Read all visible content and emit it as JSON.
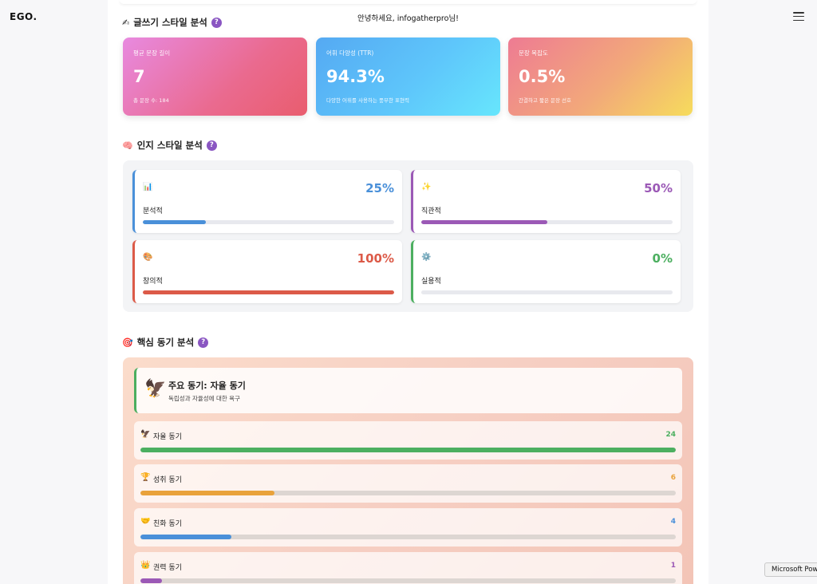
{
  "app": {
    "logo": "EGO."
  },
  "header": {
    "greeting": "안녕하세요, infogatherpro님!"
  },
  "writing": {
    "title": "글쓰기 스타일 분석",
    "icon": "✍",
    "cards": [
      {
        "label": "평균 문장 길이",
        "value": "7",
        "sub": "총 문장 수: 184"
      },
      {
        "label": "어휘 다양성 (TTR)",
        "value": "94.3%",
        "sub": "다양한 어휘를 사용하는 풍부한 표현력"
      },
      {
        "label": "문장 복잡도",
        "value": "0.5%",
        "sub": "간결하고 짧은 문장 선호"
      }
    ]
  },
  "cognitive": {
    "title": "인지 스타일 분석",
    "icon": "🧠",
    "items": [
      {
        "icon": "📊",
        "name": "분석적",
        "percent": "25%",
        "level": 0.25,
        "color": "#4a90d9"
      },
      {
        "icon": "✨",
        "name": "직관적",
        "percent": "50%",
        "level": 0.5,
        "color": "#9b59b6"
      },
      {
        "icon": "🎨",
        "name": "창의적",
        "percent": "100%",
        "level": 1.0,
        "color": "#dc5a48"
      },
      {
        "icon": "⚙️",
        "name": "실용적",
        "percent": "0%",
        "level": 0.0,
        "color": "#4caf60"
      }
    ]
  },
  "motivation": {
    "title": "핵심 동기 분석",
    "icon": "🎯",
    "primary": {
      "icon": "🦅",
      "title": "주요 동기: 자율 동기",
      "desc": "독립성과 자율성에 대한 욕구"
    },
    "items": [
      {
        "icon": "🦅",
        "name": "자율 동기",
        "value": "24",
        "level": 1.0,
        "color": "#4caf60"
      },
      {
        "icon": "🏆",
        "name": "성취 동기",
        "value": "6",
        "level": 0.25,
        "color": "#e9a23b"
      },
      {
        "icon": "🤝",
        "name": "친화 동기",
        "value": "4",
        "level": 0.17,
        "color": "#4a90d9"
      },
      {
        "icon": "👑",
        "name": "권력 동기",
        "value": "1",
        "level": 0.04,
        "color": "#9b59b6"
      }
    ]
  },
  "help_label": "?",
  "tooltip": "Microsoft Power"
}
